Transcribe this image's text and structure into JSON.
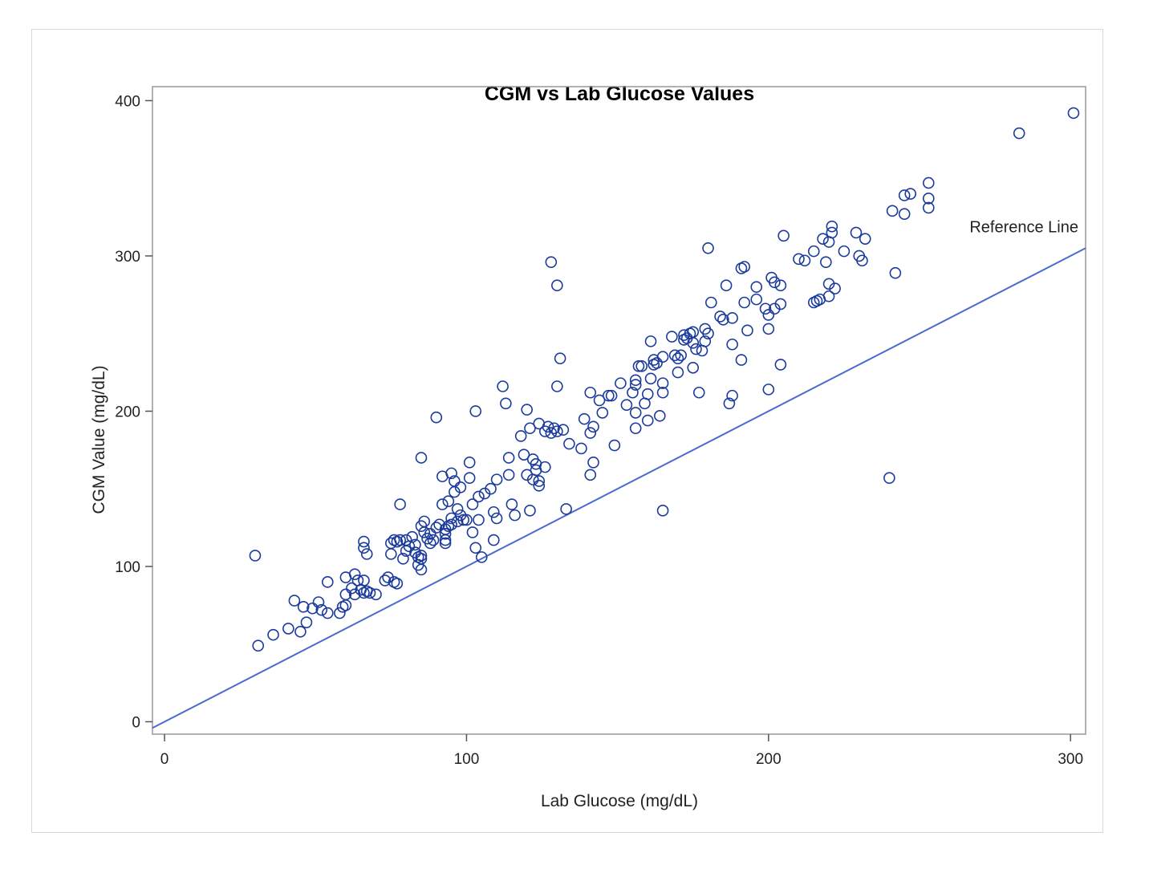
{
  "chart_data": {
    "type": "scatter",
    "title": "CGM vs Lab Glucose Values",
    "xlabel": "Lab Glucose (mg/dL)",
    "ylabel": "CGM Value (mg/dL)",
    "xlim": [
      -4,
      305
    ],
    "ylim": [
      -8,
      409
    ],
    "xticks": [
      0,
      100,
      200,
      300
    ],
    "yticks": [
      0,
      100,
      200,
      300,
      400
    ],
    "grid": false,
    "legend": "none",
    "colors": {
      "points": "#1a3a9c",
      "reference_line": "#4a6ad0",
      "frame": "#999999"
    },
    "reference_line": {
      "label": "Reference Line",
      "slope": 1,
      "intercept": 0
    },
    "points": [
      [
        30,
        107
      ],
      [
        31,
        49
      ],
      [
        36,
        56
      ],
      [
        41,
        60
      ],
      [
        43,
        78
      ],
      [
        45,
        58
      ],
      [
        46,
        74
      ],
      [
        47,
        64
      ],
      [
        49,
        73
      ],
      [
        51,
        77
      ],
      [
        52,
        72
      ],
      [
        54,
        70
      ],
      [
        54,
        90
      ],
      [
        58,
        70
      ],
      [
        59,
        74
      ],
      [
        60,
        75
      ],
      [
        60,
        82
      ],
      [
        60,
        93
      ],
      [
        62,
        86
      ],
      [
        63,
        95
      ],
      [
        63,
        82
      ],
      [
        64,
        91
      ],
      [
        65,
        85
      ],
      [
        66,
        83
      ],
      [
        66,
        91
      ],
      [
        66,
        116
      ],
      [
        66,
        112
      ],
      [
        67,
        108
      ],
      [
        67,
        84
      ],
      [
        68,
        83
      ],
      [
        70,
        82
      ],
      [
        73,
        91
      ],
      [
        74,
        93
      ],
      [
        75,
        115
      ],
      [
        75,
        108
      ],
      [
        76,
        90
      ],
      [
        76,
        117
      ],
      [
        77,
        89
      ],
      [
        77,
        116
      ],
      [
        78,
        140
      ],
      [
        78,
        117
      ],
      [
        79,
        105
      ],
      [
        80,
        110
      ],
      [
        80,
        117
      ],
      [
        81,
        113
      ],
      [
        82,
        119
      ],
      [
        83,
        109
      ],
      [
        83,
        114
      ],
      [
        84,
        101
      ],
      [
        84,
        106
      ],
      [
        85,
        98
      ],
      [
        85,
        107
      ],
      [
        85,
        105
      ],
      [
        85,
        170
      ],
      [
        85,
        126
      ],
      [
        86,
        129
      ],
      [
        86,
        122
      ],
      [
        87,
        118
      ],
      [
        88,
        115
      ],
      [
        88,
        121
      ],
      [
        89,
        117
      ],
      [
        90,
        196
      ],
      [
        90,
        125
      ],
      [
        91,
        127
      ],
      [
        92,
        140
      ],
      [
        92,
        158
      ],
      [
        93,
        121
      ],
      [
        93,
        124
      ],
      [
        93,
        117
      ],
      [
        93,
        115
      ],
      [
        94,
        142
      ],
      [
        94,
        126
      ],
      [
        95,
        127
      ],
      [
        95,
        131
      ],
      [
        95,
        160
      ],
      [
        96,
        155
      ],
      [
        96,
        148
      ],
      [
        97,
        137
      ],
      [
        97,
        129
      ],
      [
        98,
        151
      ],
      [
        98,
        133
      ],
      [
        99,
        130
      ],
      [
        100,
        130
      ],
      [
        101,
        167
      ],
      [
        101,
        157
      ],
      [
        102,
        140
      ],
      [
        102,
        122
      ],
      [
        103,
        200
      ],
      [
        103,
        112
      ],
      [
        104,
        130
      ],
      [
        104,
        145
      ],
      [
        105,
        106
      ],
      [
        106,
        147
      ],
      [
        108,
        150
      ],
      [
        109,
        135
      ],
      [
        109,
        117
      ],
      [
        110,
        156
      ],
      [
        110,
        131
      ],
      [
        112,
        216
      ],
      [
        113,
        205
      ],
      [
        114,
        170
      ],
      [
        114,
        159
      ],
      [
        115,
        140
      ],
      [
        116,
        133
      ],
      [
        118,
        184
      ],
      [
        119,
        172
      ],
      [
        120,
        159
      ],
      [
        120,
        201
      ],
      [
        121,
        136
      ],
      [
        121,
        189
      ],
      [
        122,
        156
      ],
      [
        122,
        169
      ],
      [
        123,
        166
      ],
      [
        123,
        162
      ],
      [
        124,
        192
      ],
      [
        124,
        155
      ],
      [
        124,
        152
      ],
      [
        126,
        187
      ],
      [
        126,
        164
      ],
      [
        127,
        190
      ],
      [
        128,
        186
      ],
      [
        128,
        296
      ],
      [
        129,
        189
      ],
      [
        130,
        216
      ],
      [
        130,
        281
      ],
      [
        130,
        187
      ],
      [
        131,
        234
      ],
      [
        132,
        188
      ],
      [
        133,
        137
      ],
      [
        134,
        179
      ],
      [
        138,
        176
      ],
      [
        139,
        195
      ],
      [
        141,
        186
      ],
      [
        141,
        212
      ],
      [
        141,
        159
      ],
      [
        142,
        167
      ],
      [
        142,
        190
      ],
      [
        144,
        207
      ],
      [
        145,
        199
      ],
      [
        147,
        210
      ],
      [
        148,
        210
      ],
      [
        149,
        178
      ],
      [
        151,
        218
      ],
      [
        153,
        204
      ],
      [
        155,
        212
      ],
      [
        156,
        220
      ],
      [
        156,
        217
      ],
      [
        156,
        199
      ],
      [
        156,
        189
      ],
      [
        157,
        229
      ],
      [
        158,
        229
      ],
      [
        159,
        205
      ],
      [
        160,
        194
      ],
      [
        160,
        211
      ],
      [
        161,
        245
      ],
      [
        161,
        221
      ],
      [
        162,
        230
      ],
      [
        162,
        233
      ],
      [
        163,
        231
      ],
      [
        164,
        197
      ],
      [
        165,
        235
      ],
      [
        165,
        218
      ],
      [
        165,
        212
      ],
      [
        165,
        136
      ],
      [
        168,
        248
      ],
      [
        169,
        236
      ],
      [
        170,
        234
      ],
      [
        170,
        225
      ],
      [
        171,
        236
      ],
      [
        172,
        249
      ],
      [
        172,
        246
      ],
      [
        173,
        247
      ],
      [
        174,
        250
      ],
      [
        175,
        244
      ],
      [
        175,
        228
      ],
      [
        175,
        251
      ],
      [
        176,
        240
      ],
      [
        177,
        212
      ],
      [
        178,
        239
      ],
      [
        179,
        253
      ],
      [
        179,
        245
      ],
      [
        180,
        250
      ],
      [
        180,
        305
      ],
      [
        181,
        270
      ],
      [
        184,
        261
      ],
      [
        185,
        259
      ],
      [
        186,
        281
      ],
      [
        187,
        205
      ],
      [
        188,
        243
      ],
      [
        188,
        260
      ],
      [
        188,
        210
      ],
      [
        191,
        233
      ],
      [
        191,
        292
      ],
      [
        192,
        293
      ],
      [
        192,
        270
      ],
      [
        193,
        252
      ],
      [
        196,
        280
      ],
      [
        196,
        272
      ],
      [
        199,
        266
      ],
      [
        200,
        253
      ],
      [
        200,
        214
      ],
      [
        200,
        262
      ],
      [
        201,
        286
      ],
      [
        202,
        283
      ],
      [
        202,
        266
      ],
      [
        204,
        281
      ],
      [
        204,
        269
      ],
      [
        204,
        230
      ],
      [
        205,
        313
      ],
      [
        210,
        298
      ],
      [
        212,
        297
      ],
      [
        215,
        303
      ],
      [
        215,
        270
      ],
      [
        216,
        271
      ],
      [
        217,
        272
      ],
      [
        218,
        311
      ],
      [
        219,
        296
      ],
      [
        220,
        309
      ],
      [
        220,
        282
      ],
      [
        220,
        274
      ],
      [
        221,
        319
      ],
      [
        221,
        315
      ],
      [
        222,
        279
      ],
      [
        225,
        303
      ],
      [
        229,
        315
      ],
      [
        230,
        300
      ],
      [
        231,
        297
      ],
      [
        232,
        311
      ],
      [
        240,
        157
      ],
      [
        241,
        329
      ],
      [
        242,
        289
      ],
      [
        245,
        339
      ],
      [
        245,
        327
      ],
      [
        247,
        340
      ],
      [
        253,
        347
      ],
      [
        253,
        337
      ],
      [
        253,
        331
      ],
      [
        283,
        379
      ],
      [
        301,
        392
      ]
    ]
  }
}
